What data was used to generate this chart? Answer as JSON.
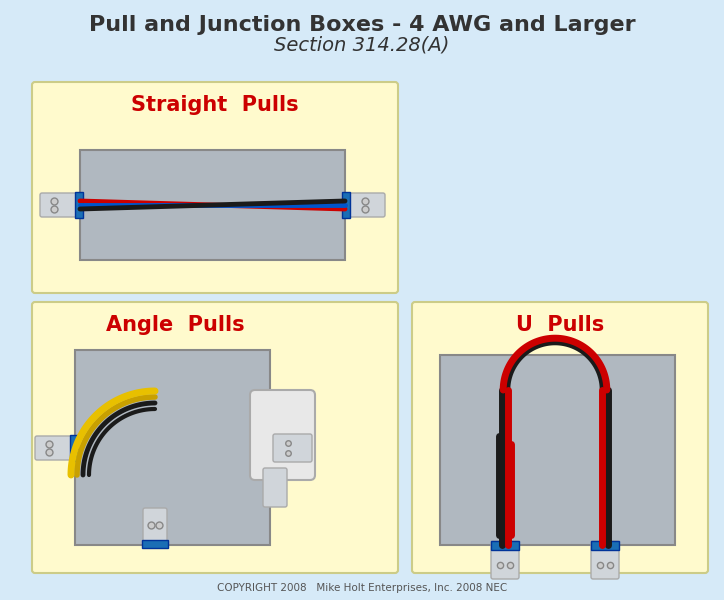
{
  "bg_color": "#d6eaf8",
  "title_line1": "Pull and Junction Boxes - 4 AWG and Larger",
  "title_line2": "Section 314.28(A)",
  "title_fontsize": 16,
  "subtitle_fontsize": 14,
  "copyright_text": "COPYRIGHT 2008   Mike Holt Enterprises, Inc. 2008 NEC",
  "panel_yellow": "#fffacd",
  "panel_gray": "#b0b8c0",
  "conduit_color": "#d0d5da",
  "conduit_ring_color": "#1a6eb5",
  "wire_black": "#1a1a1a",
  "wire_red": "#cc0000",
  "wire_blue": "#0055cc",
  "wire_yellow": "#e8c000",
  "wire_yellow2": "#c8a000",
  "section_label_color": "#cc0000",
  "box_border": "#888888"
}
